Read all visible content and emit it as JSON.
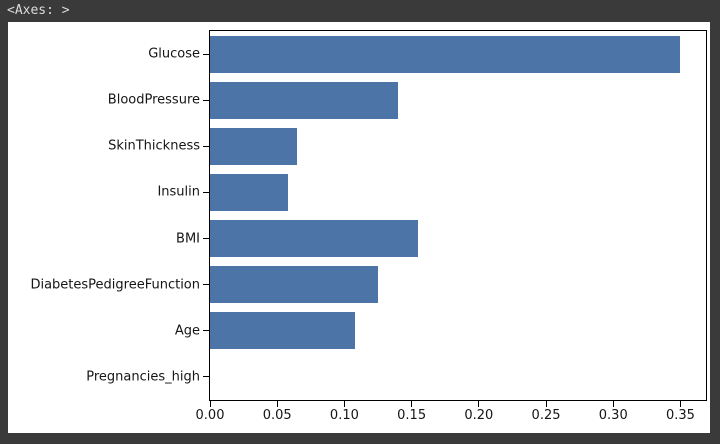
{
  "window": {
    "title": "<Axes: >",
    "frame_color": "#3a3a3a",
    "title_text_color": "#dcdcdc"
  },
  "chart_data": {
    "type": "bar",
    "orientation": "horizontal",
    "title": "",
    "xlabel": "",
    "ylabel": "",
    "categories": [
      "Glucose",
      "BloodPressure",
      "SkinThickness",
      "Insulin",
      "BMI",
      "DiabetesPedigreeFunction",
      "Age",
      "Pregnancies_high"
    ],
    "values": [
      0.35,
      0.14,
      0.065,
      0.058,
      0.155,
      0.125,
      0.108,
      0.0
    ],
    "x_ticks": [
      {
        "label": "0.00",
        "value": 0.0
      },
      {
        "label": "0.05",
        "value": 0.05
      },
      {
        "label": "0.10",
        "value": 0.1
      },
      {
        "label": "0.15",
        "value": 0.15
      },
      {
        "label": "0.20",
        "value": 0.2
      },
      {
        "label": "0.25",
        "value": 0.25
      },
      {
        "label": "0.30",
        "value": 0.3
      },
      {
        "label": "0.35",
        "value": 0.35
      }
    ],
    "xlim": [
      0,
      0.369
    ],
    "bar_color": "#4d74a7",
    "bar_fraction_of_slot": 0.8,
    "grid": false,
    "legend": false,
    "background": "#ffffff"
  }
}
